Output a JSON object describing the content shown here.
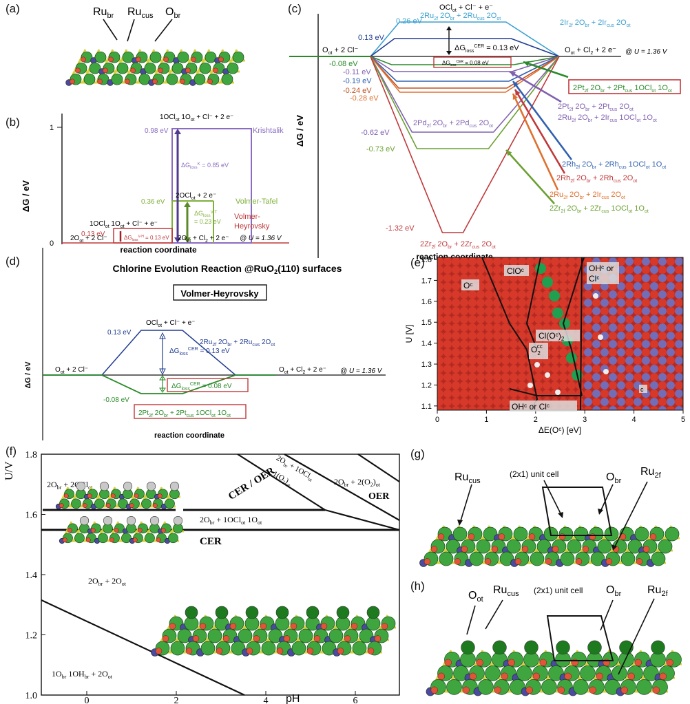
{
  "colors": {
    "ru_green": "#3fa63f",
    "blue_atom": "#4a4aa0",
    "red_o": "#e0543a",
    "purple": "#8060b0",
    "blue_line": "#203c90",
    "green_line": "#2a8a2a",
    "red_line": "#c0383a",
    "vh_red": "#c0383a",
    "k_purple": "#8a6cc0",
    "vt_green": "#7fb03a",
    "surface_red": "#d83a2a",
    "surface_blue": "#7070c0"
  },
  "a": {
    "label": "(a)",
    "ru_br": "Ru",
    "ru_br_sub": "br",
    "ru_cus": "Ru",
    "ru_cus_sub": "cus",
    "o_br": "O",
    "o_br_sub": "br"
  },
  "b": {
    "label": "(b)",
    "ylabel": "ΔG / eV",
    "xlabel": "reaction coordinate",
    "potential": "@ U = 1.36 V",
    "y1": "1",
    "y0": "0",
    "top_state": "1OCl",
    "top_state_rest": " 1O",
    "top_state_tail": " + Cl⁻ + 2 e⁻",
    "e098": "0.98 eV",
    "krishtalik": "Krishtalik",
    "k_loss": "ΔG",
    "k_loss_sub": "loss",
    "k_loss_sup": "K",
    "k_loss_val": " = 0.85 eV",
    "e036": "0.36 eV",
    "vt_state": "2OCl",
    "vt_state_tail": " + 2 e⁻",
    "vt_name": "Volmer-Tafel",
    "vt_loss": "ΔG",
    "vt_loss_sub": "loss",
    "vt_loss_sup": "V-T",
    "vt_val": "= 0.23 eV",
    "e013": "0.13 eV",
    "vh_state": "1OCl",
    "vh_state_tail": " 1O",
    "vh_state_end": " + Cl⁻ + e⁻",
    "vh_name1": "Volmer-",
    "vh_name2": "Heyrovsky",
    "vh_loss": "ΔG",
    "vh_loss_sub": "loss",
    "vh_loss_sup": "V-H",
    "vh_val": " = 0.13 eV",
    "start": "2O",
    "start_tail": " + 2 Cl⁻",
    "end": "2O",
    "end_tail": " + Cl",
    "end_tail2": " + 2 e⁻"
  },
  "c": {
    "label": "(c)",
    "ylabel": "ΔG / eV",
    "xlabel": "reaction coordinate",
    "potential": "@ U = 1.36 V",
    "start": "O",
    "start_tail": " + 2 Cl⁻",
    "end": "O",
    "end_tail": " + Cl",
    "end_tail2": " + 2 e⁻",
    "top_state": "OCl",
    "top_tail": " + Cl⁻ + e⁻",
    "e026": "0.26 eV",
    "e013": "0.13 eV",
    "em008": "-0.08 eV",
    "em011": "-0.11 eV",
    "em019": "-0.19 eV",
    "em024": "-0.24 eV",
    "em028": "-0.28 eV",
    "em062": "-0.62 eV",
    "em073": "-0.73 eV",
    "em132": "-1.32 eV",
    "loss": "ΔG",
    "loss_sub": "loss",
    "loss_sup": "CER",
    "loss_val": " = 0.13 eV",
    "loss2_val": " = 0.08 eV",
    "lab_ir": "2Ir2f 2Obr + 2Ircus 2Oot",
    "lab_ru": "2Ru2f 2Obr + 2Rucus 2Oot",
    "lab_pt_box": "2Pt2f 2Obr + 2Ptcus 1OClot 1Oot",
    "lab_pt2": "2Pt2f 2Obr + 2Ptcus 2Oot",
    "lab_ru_ir": "2Ru2f 2Obr + 2Ircus 1OClot 1Oot",
    "lab_pd": "2Pd2f 2Obr + 2Pdcus 2Oot",
    "lab_rh1": "2Rh2f 2Obr + 2Rhcus 1OClot 1Oot",
    "lab_rh2": "2Rh2f 2Obr + 2Rhcus 2Oot",
    "lab_ru2": "2Ru2f 2Obr + 2Ircus 2Oot",
    "lab_zr1": "2Zr2f 2Obr + 2Zrcus 1OClot 1Oot",
    "lab_zr2": "2Zr2f 2Obr + 2Zrcus 2Oot"
  },
  "d": {
    "label": "(d)",
    "title": "Chlorine Evolution Reaction @RuO",
    "title_sub": "2",
    "title_tail": "(110) surfaces",
    "box": "Volmer-Heyrovsky",
    "ylabel": "ΔG / eV",
    "xlabel": "reaction coordinate",
    "potential": "@ U = 1.36 V",
    "top": "OCl",
    "top_tail": " + Cl⁻ + e⁻",
    "e013": "0.13 eV",
    "em008": "-0.08 eV",
    "ru_label": "2Ru2f 2Obr + 2Rucus 2Oot",
    "loss": "ΔG",
    "loss_sub": "loss",
    "loss_sup": "CER",
    "loss_val": " = 0.13 eV",
    "loss2_val": " = 0.08 eV",
    "start": "O",
    "start_tail": " + 2 Cl⁻",
    "end": "O",
    "end_tail": " + Cl",
    "end_tail2": " + 2 e⁻",
    "pt_box": "2Pt2f 2Obr + 2Ptcus 1OClot 1Oot"
  },
  "e": {
    "label": "(e)",
    "ylabel": "U [V]",
    "xlabel": "ΔE(Oᶜ) [eV]",
    "yticks": [
      "1.8",
      "1.7",
      "1.6",
      "1.5",
      "1.4",
      "1.3",
      "1.2",
      "1.1"
    ],
    "xticks": [
      "0",
      "1",
      "2",
      "3",
      "4",
      "5"
    ],
    "r_oc": "Oᶜ",
    "r_cloc": "ClOᶜ",
    "r_ohcl": "OHᶜ or",
    "r_ohcl2": "Clᶜ",
    "r_cloc2": "Cl(Oᶜ)",
    "r_cloc2_sub": "2",
    "r_o2c": "O",
    "r_o2c_sub": "2",
    "r_o2c_sup": "cc",
    "r_ohcl_b": "OHᶜ or Clᶜ",
    "r_c": "c"
  },
  "f": {
    "label": "(f)",
    "ylabel": "U/V",
    "xlabel": "pH",
    "yticks": [
      "1.8",
      "1.6",
      "1.4",
      "1.2",
      "1.0"
    ],
    "xticks": [
      "0",
      "2",
      "4",
      "6"
    ],
    "r1": "2O",
    "r1_tail": " + 2OCl",
    "r2": "2O",
    "r2_tail": " + 1OCl",
    "r2_end": " 1O",
    "r3": "2O",
    "r3_tail": " + 2O",
    "r4": "1O",
    "r4_tail": " 1OH",
    "r4_end": " + 2O",
    "r5": "2O",
    "r5_tail": " + 1OCl",
    "r5_b": "1(O",
    "r5_b2": ")",
    "r6": "2O",
    "r6_tail": " + 2(O",
    "r6_end": ")",
    "cer_oer": "CER / OER",
    "oer": "OER",
    "cer": "CER"
  },
  "g": {
    "label": "(g)",
    "ru_cus": "Ru",
    "ru_cus_sub": "cus",
    "unit": "(2x1) unit cell",
    "o_br": "O",
    "o_br_sub": "br",
    "ru_2f": "Ru",
    "ru_2f_sub": "2f"
  },
  "h": {
    "label": "(h)",
    "o_ot": "O",
    "o_ot_sub": "ot",
    "ru_cus": "Ru",
    "ru_cus_sub": "cus",
    "unit": "(2x1) unit cell",
    "o_br": "O",
    "o_br_sub": "br",
    "ru_2f": "Ru",
    "ru_2f_sub": "2f"
  }
}
